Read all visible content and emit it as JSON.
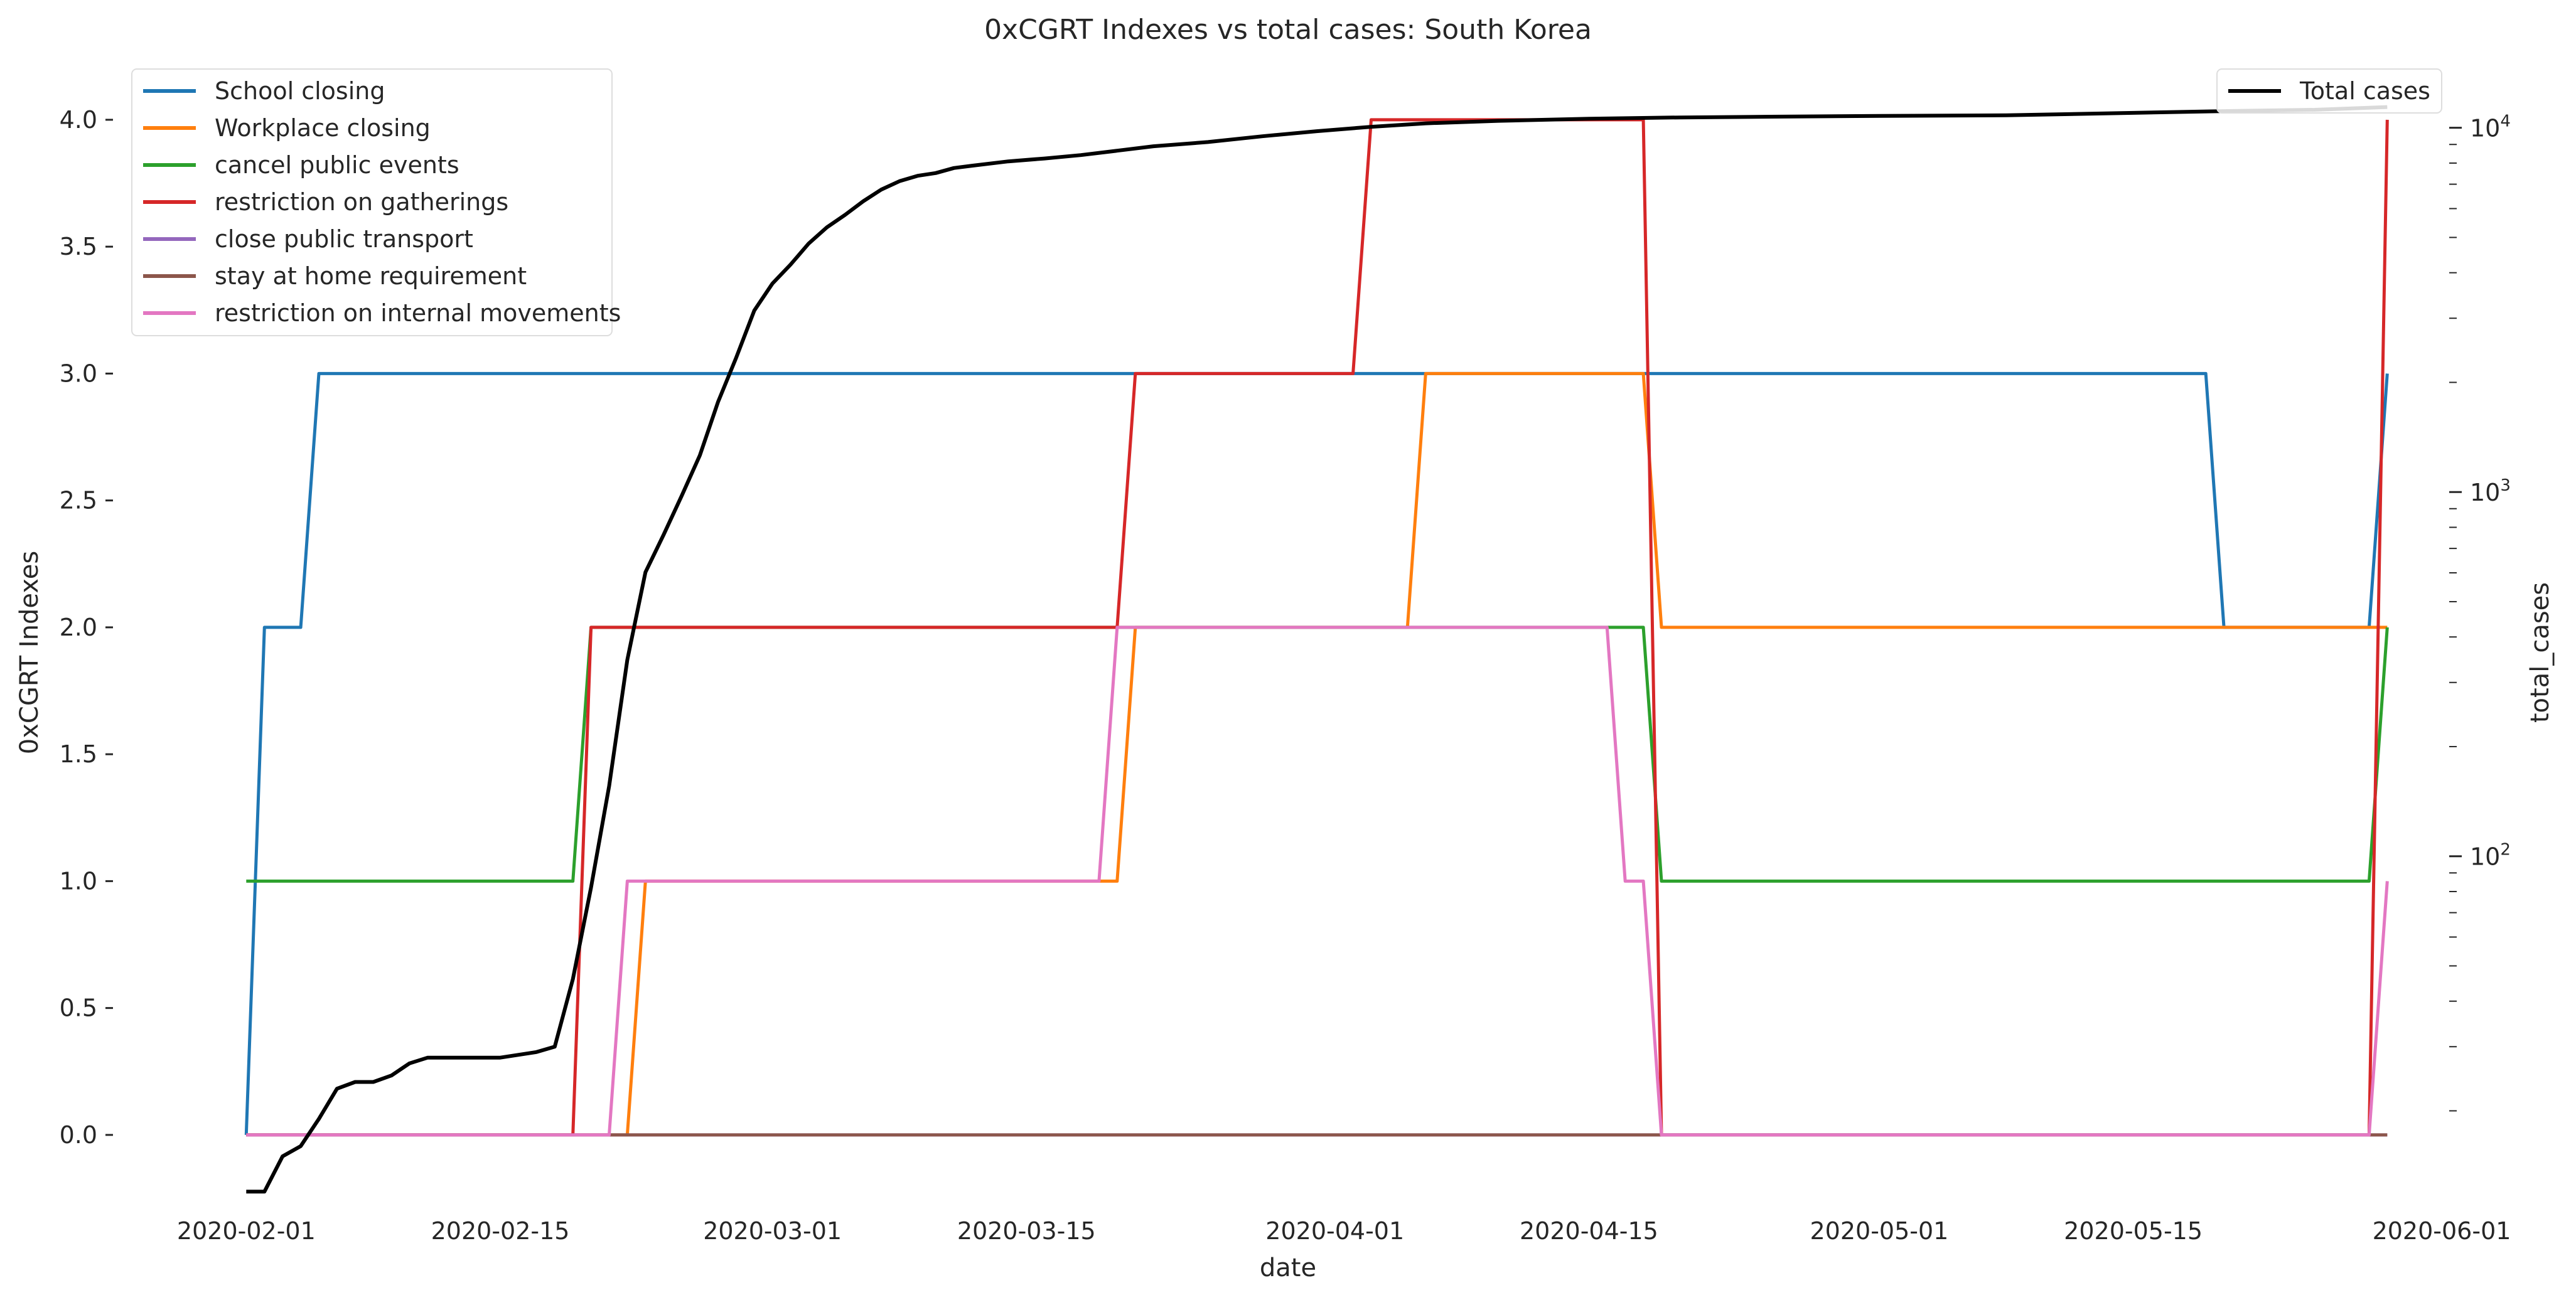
{
  "chart_data": {
    "type": "line",
    "title": "0xCGRT Indexes vs total cases:  South Korea",
    "xlabel": "date",
    "ylabel": "0xCGRT Indexes",
    "ylabel_right": "total_cases",
    "x_ticks": [
      "2020-02-01",
      "2020-02-15",
      "2020-03-01",
      "2020-03-15",
      "2020-04-01",
      "2020-04-15",
      "2020-05-01",
      "2020-05-15",
      "2020-06-01"
    ],
    "xlim": [
      "2020-01-25",
      "2020-06-01"
    ],
    "ylim": [
      -0.25,
      4.2
    ],
    "y_ticks": [
      "0.0",
      "0.5",
      "1.0",
      "1.5",
      "2.0",
      "2.5",
      "3.0",
      "3.5",
      "4.0"
    ],
    "y2_scale": "log",
    "y2lim": [
      11.5,
      14500
    ],
    "y2_ticks": [
      "10^2",
      "10^3",
      "10^4"
    ],
    "grid": false,
    "legend_left_position": "upper-left",
    "legend_right_position": "upper-right",
    "series": [
      {
        "name": "School closing",
        "color": "#1f77b4",
        "points": [
          [
            "2020-02-01",
            0
          ],
          [
            "2020-02-02",
            2
          ],
          [
            "2020-02-04",
            2
          ],
          [
            "2020-02-05",
            3
          ],
          [
            "2020-05-19",
            3
          ],
          [
            "2020-05-20",
            2
          ],
          [
            "2020-05-28",
            2
          ],
          [
            "2020-05-29",
            3
          ]
        ]
      },
      {
        "name": "Workplace closing",
        "color": "#ff7f0e",
        "points": [
          [
            "2020-02-01",
            0
          ],
          [
            "2020-02-22",
            0
          ],
          [
            "2020-02-23",
            1
          ],
          [
            "2020-03-20",
            1
          ],
          [
            "2020-03-21",
            2
          ],
          [
            "2020-04-05",
            2
          ],
          [
            "2020-04-06",
            3
          ],
          [
            "2020-04-18",
            3
          ],
          [
            "2020-04-19",
            2
          ],
          [
            "2020-05-29",
            2
          ]
        ]
      },
      {
        "name": "cancel public events",
        "color": "#2ca02c",
        "points": [
          [
            "2020-02-01",
            1
          ],
          [
            "2020-02-19",
            1
          ],
          [
            "2020-02-20",
            2
          ],
          [
            "2020-04-18",
            2
          ],
          [
            "2020-04-19",
            1
          ],
          [
            "2020-05-28",
            1
          ],
          [
            "2020-05-29",
            2
          ]
        ]
      },
      {
        "name": "restriction on gatherings",
        "color": "#d62728",
        "points": [
          [
            "2020-02-01",
            0
          ],
          [
            "2020-02-19",
            0
          ],
          [
            "2020-02-20",
            2
          ],
          [
            "2020-03-20",
            2
          ],
          [
            "2020-03-21",
            3
          ],
          [
            "2020-04-02",
            3
          ],
          [
            "2020-04-03",
            4
          ],
          [
            "2020-04-18",
            4
          ],
          [
            "2020-04-19",
            0
          ],
          [
            "2020-05-28",
            0
          ],
          [
            "2020-05-29",
            4
          ]
        ]
      },
      {
        "name": "close public transport",
        "color": "#9467bd",
        "points": [
          [
            "2020-02-01",
            0
          ],
          [
            "2020-05-29",
            0
          ]
        ]
      },
      {
        "name": "stay at home requirement",
        "color": "#8c564b",
        "points": [
          [
            "2020-02-01",
            0
          ],
          [
            "2020-05-29",
            0
          ]
        ]
      },
      {
        "name": "restriction on internal movements",
        "color": "#e377c2",
        "points": [
          [
            "2020-02-01",
            0
          ],
          [
            "2020-02-21",
            0
          ],
          [
            "2020-02-22",
            1
          ],
          [
            "2020-03-19",
            1
          ],
          [
            "2020-03-20",
            2
          ],
          [
            "2020-04-16",
            2
          ],
          [
            "2020-04-17",
            1
          ],
          [
            "2020-04-18",
            1
          ],
          [
            "2020-04-19",
            0
          ],
          [
            "2020-05-28",
            0
          ],
          [
            "2020-05-29",
            1
          ]
        ]
      }
    ],
    "series_right": {
      "name": "Total cases",
      "color": "#000000",
      "points": [
        [
          "2020-02-01",
          12
        ],
        [
          "2020-02-02",
          12
        ],
        [
          "2020-02-03",
          15
        ],
        [
          "2020-02-04",
          16
        ],
        [
          "2020-02-05",
          19
        ],
        [
          "2020-02-06",
          23
        ],
        [
          "2020-02-07",
          24
        ],
        [
          "2020-02-08",
          24
        ],
        [
          "2020-02-09",
          25
        ],
        [
          "2020-02-10",
          27
        ],
        [
          "2020-02-11",
          28
        ],
        [
          "2020-02-15",
          28
        ],
        [
          "2020-02-17",
          29
        ],
        [
          "2020-02-18",
          30
        ],
        [
          "2020-02-19",
          46
        ],
        [
          "2020-02-20",
          82
        ],
        [
          "2020-02-21",
          156
        ],
        [
          "2020-02-22",
          346
        ],
        [
          "2020-02-23",
          602
        ],
        [
          "2020-02-24",
          763
        ],
        [
          "2020-02-25",
          977
        ],
        [
          "2020-02-26",
          1261
        ],
        [
          "2020-02-27",
          1766
        ],
        [
          "2020-02-28",
          2337
        ],
        [
          "2020-02-29",
          3150
        ],
        [
          "2020-03-01",
          3736
        ],
        [
          "2020-03-02",
          4212
        ],
        [
          "2020-03-03",
          4812
        ],
        [
          "2020-03-04",
          5328
        ],
        [
          "2020-03-05",
          5766
        ],
        [
          "2020-03-06",
          6284
        ],
        [
          "2020-03-07",
          6767
        ],
        [
          "2020-03-08",
          7134
        ],
        [
          "2020-03-09",
          7382
        ],
        [
          "2020-03-10",
          7513
        ],
        [
          "2020-03-11",
          7755
        ],
        [
          "2020-03-12",
          7869
        ],
        [
          "2020-03-14",
          8086
        ],
        [
          "2020-03-16",
          8236
        ],
        [
          "2020-03-18",
          8413
        ],
        [
          "2020-03-20",
          8652
        ],
        [
          "2020-03-22",
          8897
        ],
        [
          "2020-03-25",
          9137
        ],
        [
          "2020-03-28",
          9478
        ],
        [
          "2020-03-31",
          9786
        ],
        [
          "2020-04-03",
          10062
        ],
        [
          "2020-04-06",
          10284
        ],
        [
          "2020-04-10",
          10450
        ],
        [
          "2020-04-15",
          10591
        ],
        [
          "2020-04-20",
          10674
        ],
        [
          "2020-04-25",
          10728
        ],
        [
          "2020-05-01",
          10780
        ],
        [
          "2020-05-08",
          10822
        ],
        [
          "2020-05-15",
          10991
        ],
        [
          "2020-05-20",
          11110
        ],
        [
          "2020-05-25",
          11206
        ],
        [
          "2020-05-29",
          11402
        ]
      ]
    }
  }
}
